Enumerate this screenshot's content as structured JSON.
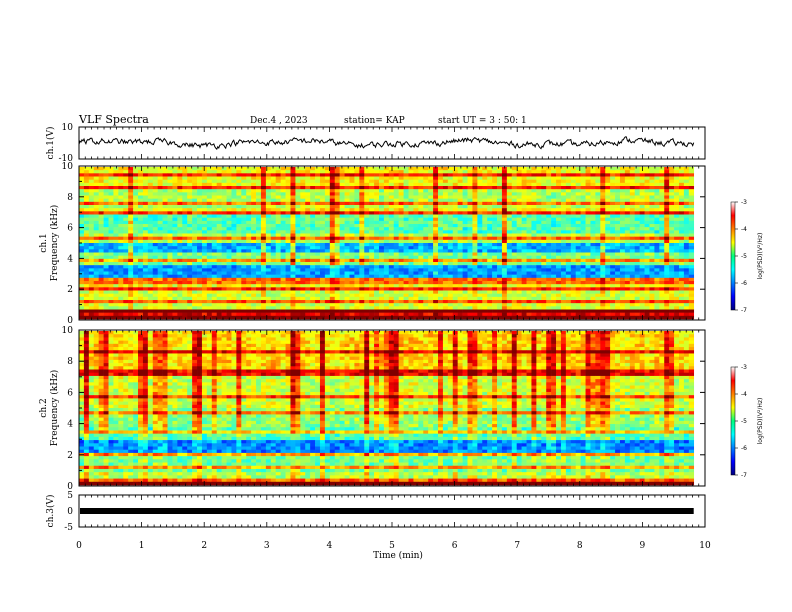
{
  "header": {
    "title": "VLF Spectra",
    "date": "Dec.4 , 2023",
    "station": "station= KAP",
    "start_ut": "start UT =  3 : 50: 1"
  },
  "chart_data": [
    {
      "type": "line",
      "name": "ch1-waveform",
      "ylabel": "ch.1(V)",
      "xlim": [
        0,
        10
      ],
      "ylim": [
        -10,
        10
      ],
      "yticks": [
        "10",
        "-10"
      ],
      "x_end": 9.82,
      "level_description": "fluctuating trace around 0 V, between about -5 and +6 V"
    },
    {
      "type": "heatmap",
      "name": "ch1-spectrogram",
      "ylabel_lines": [
        "ch.1",
        "Frequency (kHz)"
      ],
      "xlim": [
        0,
        10
      ],
      "ylim": [
        0,
        10
      ],
      "yticks": [
        "0",
        "2",
        "4",
        "6",
        "8",
        "10"
      ],
      "x_end": 9.82,
      "colorbar": {
        "label": "log(PSD)(V²/Hz)",
        "range": [
          -7,
          -3
        ],
        "ticks": [
          "-3",
          "-4",
          "-5",
          "-6",
          "-7"
        ]
      }
    },
    {
      "type": "heatmap",
      "name": "ch2-spectrogram",
      "ylabel_lines": [
        "ch.2",
        "Frequency (kHz)"
      ],
      "xlim": [
        0,
        10
      ],
      "ylim": [
        0,
        10
      ],
      "yticks": [
        "0",
        "2",
        "4",
        "6",
        "8",
        "10"
      ],
      "x_end": 9.82,
      "colorbar": {
        "label": "log(PSD)(V²/Hz)",
        "range": [
          -7,
          -3
        ],
        "ticks": [
          "-3",
          "-4",
          "-5",
          "-6",
          "-7"
        ]
      }
    },
    {
      "type": "line",
      "name": "ch3-waveform",
      "ylabel": "ch.3(V)",
      "xlim": [
        0,
        10
      ],
      "ylim": [
        -5,
        5
      ],
      "yticks": [
        "5",
        "0",
        "-5"
      ],
      "x_end": 9.82,
      "level": 0
    }
  ],
  "xaxis": {
    "label": "Time (min)",
    "ticks": [
      "0",
      "1",
      "2",
      "3",
      "4",
      "5",
      "6",
      "7",
      "8",
      "9",
      "10"
    ]
  }
}
